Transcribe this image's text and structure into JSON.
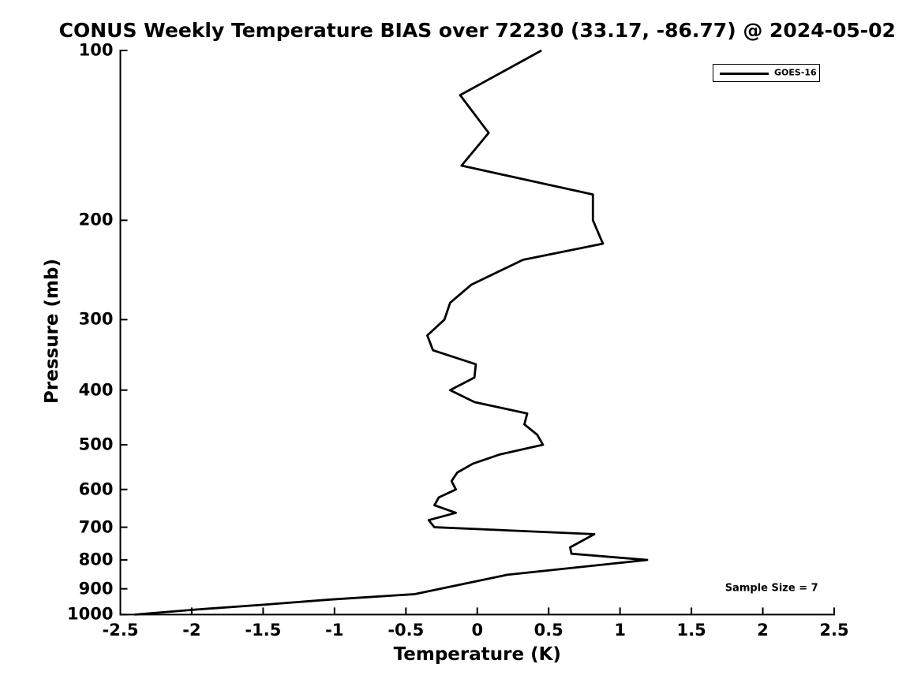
{
  "chart_data": {
    "type": "line",
    "title": "CONUS Weekly Temperature BIAS over 72230 (33.17, -86.77) @ 2024-05-02",
    "xlabel": "Temperature (K)",
    "ylabel": "Pressure (mb)",
    "xlim": [
      -2.5,
      2.5
    ],
    "ylim": [
      100,
      1000
    ],
    "y_scale": "log",
    "y_inverted": true,
    "grid": false,
    "x_ticks": [
      -2.5,
      -2,
      -1.5,
      -1,
      -0.5,
      0,
      0.5,
      1,
      1.5,
      2,
      2.5
    ],
    "y_ticks": [
      100,
      200,
      300,
      400,
      500,
      600,
      700,
      800,
      900,
      1000
    ],
    "legend": {
      "position": "top-right",
      "border_color": "#000000",
      "background": "#ffffff"
    },
    "series": [
      {
        "name": "GOES-16",
        "color": "#000000",
        "line_width": 2.8,
        "points": [
          {
            "pressure_mb": 100,
            "bias_k": 0.45
          },
          {
            "pressure_mb": 120,
            "bias_k": -0.12
          },
          {
            "pressure_mb": 140,
            "bias_k": 0.08
          },
          {
            "pressure_mb": 160,
            "bias_k": -0.11
          },
          {
            "pressure_mb": 180,
            "bias_k": 0.81
          },
          {
            "pressure_mb": 200,
            "bias_k": 0.81
          },
          {
            "pressure_mb": 220,
            "bias_k": 0.88
          },
          {
            "pressure_mb": 235,
            "bias_k": 0.32
          },
          {
            "pressure_mb": 260,
            "bias_k": -0.04
          },
          {
            "pressure_mb": 280,
            "bias_k": -0.19
          },
          {
            "pressure_mb": 300,
            "bias_k": -0.23
          },
          {
            "pressure_mb": 320,
            "bias_k": -0.35
          },
          {
            "pressure_mb": 340,
            "bias_k": -0.31
          },
          {
            "pressure_mb": 360,
            "bias_k": -0.01
          },
          {
            "pressure_mb": 380,
            "bias_k": -0.02
          },
          {
            "pressure_mb": 400,
            "bias_k": -0.19
          },
          {
            "pressure_mb": 420,
            "bias_k": -0.02
          },
          {
            "pressure_mb": 440,
            "bias_k": 0.35
          },
          {
            "pressure_mb": 460,
            "bias_k": 0.33
          },
          {
            "pressure_mb": 480,
            "bias_k": 0.42
          },
          {
            "pressure_mb": 500,
            "bias_k": 0.46
          },
          {
            "pressure_mb": 520,
            "bias_k": 0.16
          },
          {
            "pressure_mb": 540,
            "bias_k": -0.03
          },
          {
            "pressure_mb": 560,
            "bias_k": -0.14
          },
          {
            "pressure_mb": 580,
            "bias_k": -0.18
          },
          {
            "pressure_mb": 600,
            "bias_k": -0.15
          },
          {
            "pressure_mb": 620,
            "bias_k": -0.27
          },
          {
            "pressure_mb": 640,
            "bias_k": -0.3
          },
          {
            "pressure_mb": 660,
            "bias_k": -0.15
          },
          {
            "pressure_mb": 680,
            "bias_k": -0.34
          },
          {
            "pressure_mb": 700,
            "bias_k": -0.3
          },
          {
            "pressure_mb": 720,
            "bias_k": 0.82
          },
          {
            "pressure_mb": 760,
            "bias_k": 0.65
          },
          {
            "pressure_mb": 780,
            "bias_k": 0.66
          },
          {
            "pressure_mb": 800,
            "bias_k": 1.19
          },
          {
            "pressure_mb": 850,
            "bias_k": 0.21
          },
          {
            "pressure_mb": 920,
            "bias_k": -0.44
          },
          {
            "pressure_mb": 940,
            "bias_k": -1.02
          },
          {
            "pressure_mb": 960,
            "bias_k": -1.49
          },
          {
            "pressure_mb": 980,
            "bias_k": -1.98
          },
          {
            "pressure_mb": 1000,
            "bias_k": -2.4
          }
        ]
      }
    ],
    "annotations": [
      {
        "text": "Sample Size = 7"
      }
    ]
  },
  "colors": {
    "background": "#ffffff",
    "axis": "#000000",
    "text": "#000000",
    "line": "#000000"
  }
}
